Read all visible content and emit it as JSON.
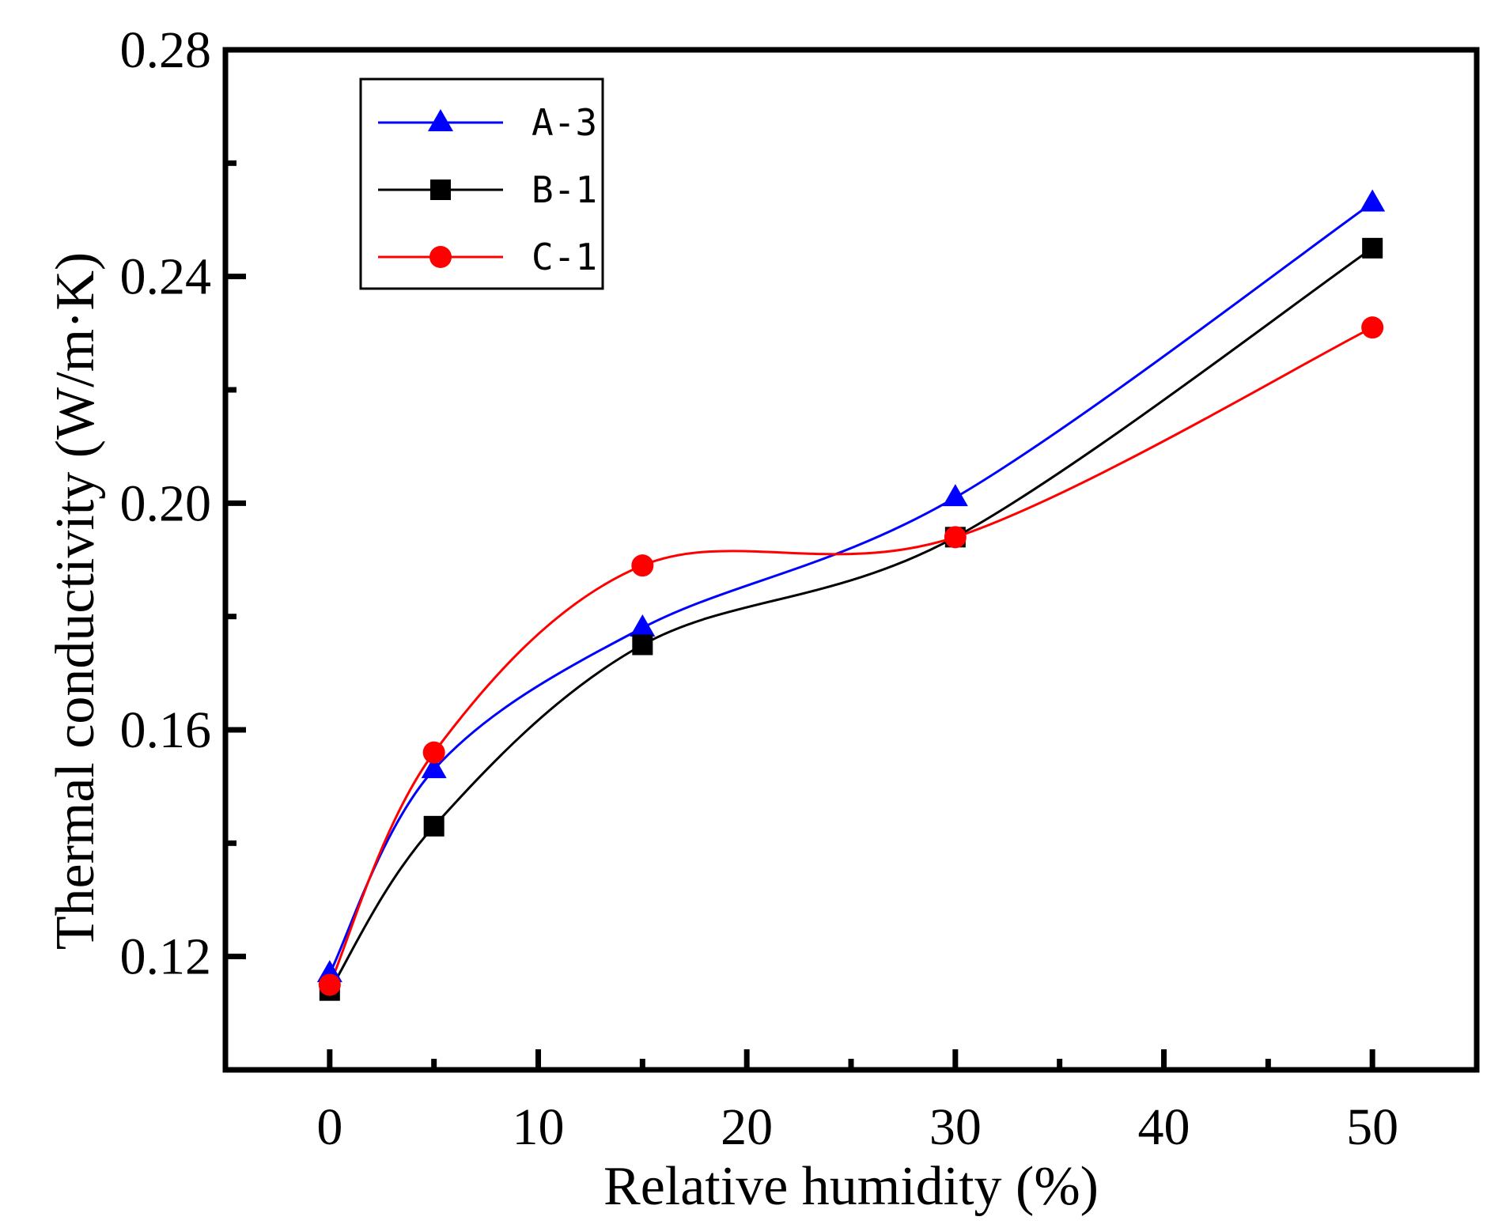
{
  "chart_data": {
    "type": "line",
    "title": "",
    "xlabel": "Relative humidity (%)",
    "ylabel": "Thermal conductivity (W/m·K)",
    "xlim": [
      -5,
      55
    ],
    "ylim": [
      0.1,
      0.28
    ],
    "x_ticks": [
      0,
      10,
      20,
      30,
      40,
      50
    ],
    "x_tick_labels": [
      "0",
      "10",
      "20",
      "30",
      "40",
      "50"
    ],
    "y_ticks": [
      0.12,
      0.16,
      0.2,
      0.24,
      0.28
    ],
    "y_tick_labels": [
      "0.12",
      "0.16",
      "0.20",
      "0.24",
      "0.28"
    ],
    "x": [
      0,
      5,
      15,
      30,
      50
    ],
    "legend_position": "top-left",
    "series": [
      {
        "name": "A-3",
        "values": [
          0.117,
          0.153,
          0.178,
          0.201,
          0.253
        ],
        "color": "#0000ff",
        "marker": "triangle"
      },
      {
        "name": "B-1",
        "values": [
          0.114,
          0.143,
          0.175,
          0.194,
          0.245
        ],
        "color": "#000000",
        "marker": "square"
      },
      {
        "name": "C-1",
        "values": [
          0.115,
          0.156,
          0.189,
          0.194,
          0.231
        ],
        "color": "#ff0000",
        "marker": "circle"
      }
    ]
  }
}
